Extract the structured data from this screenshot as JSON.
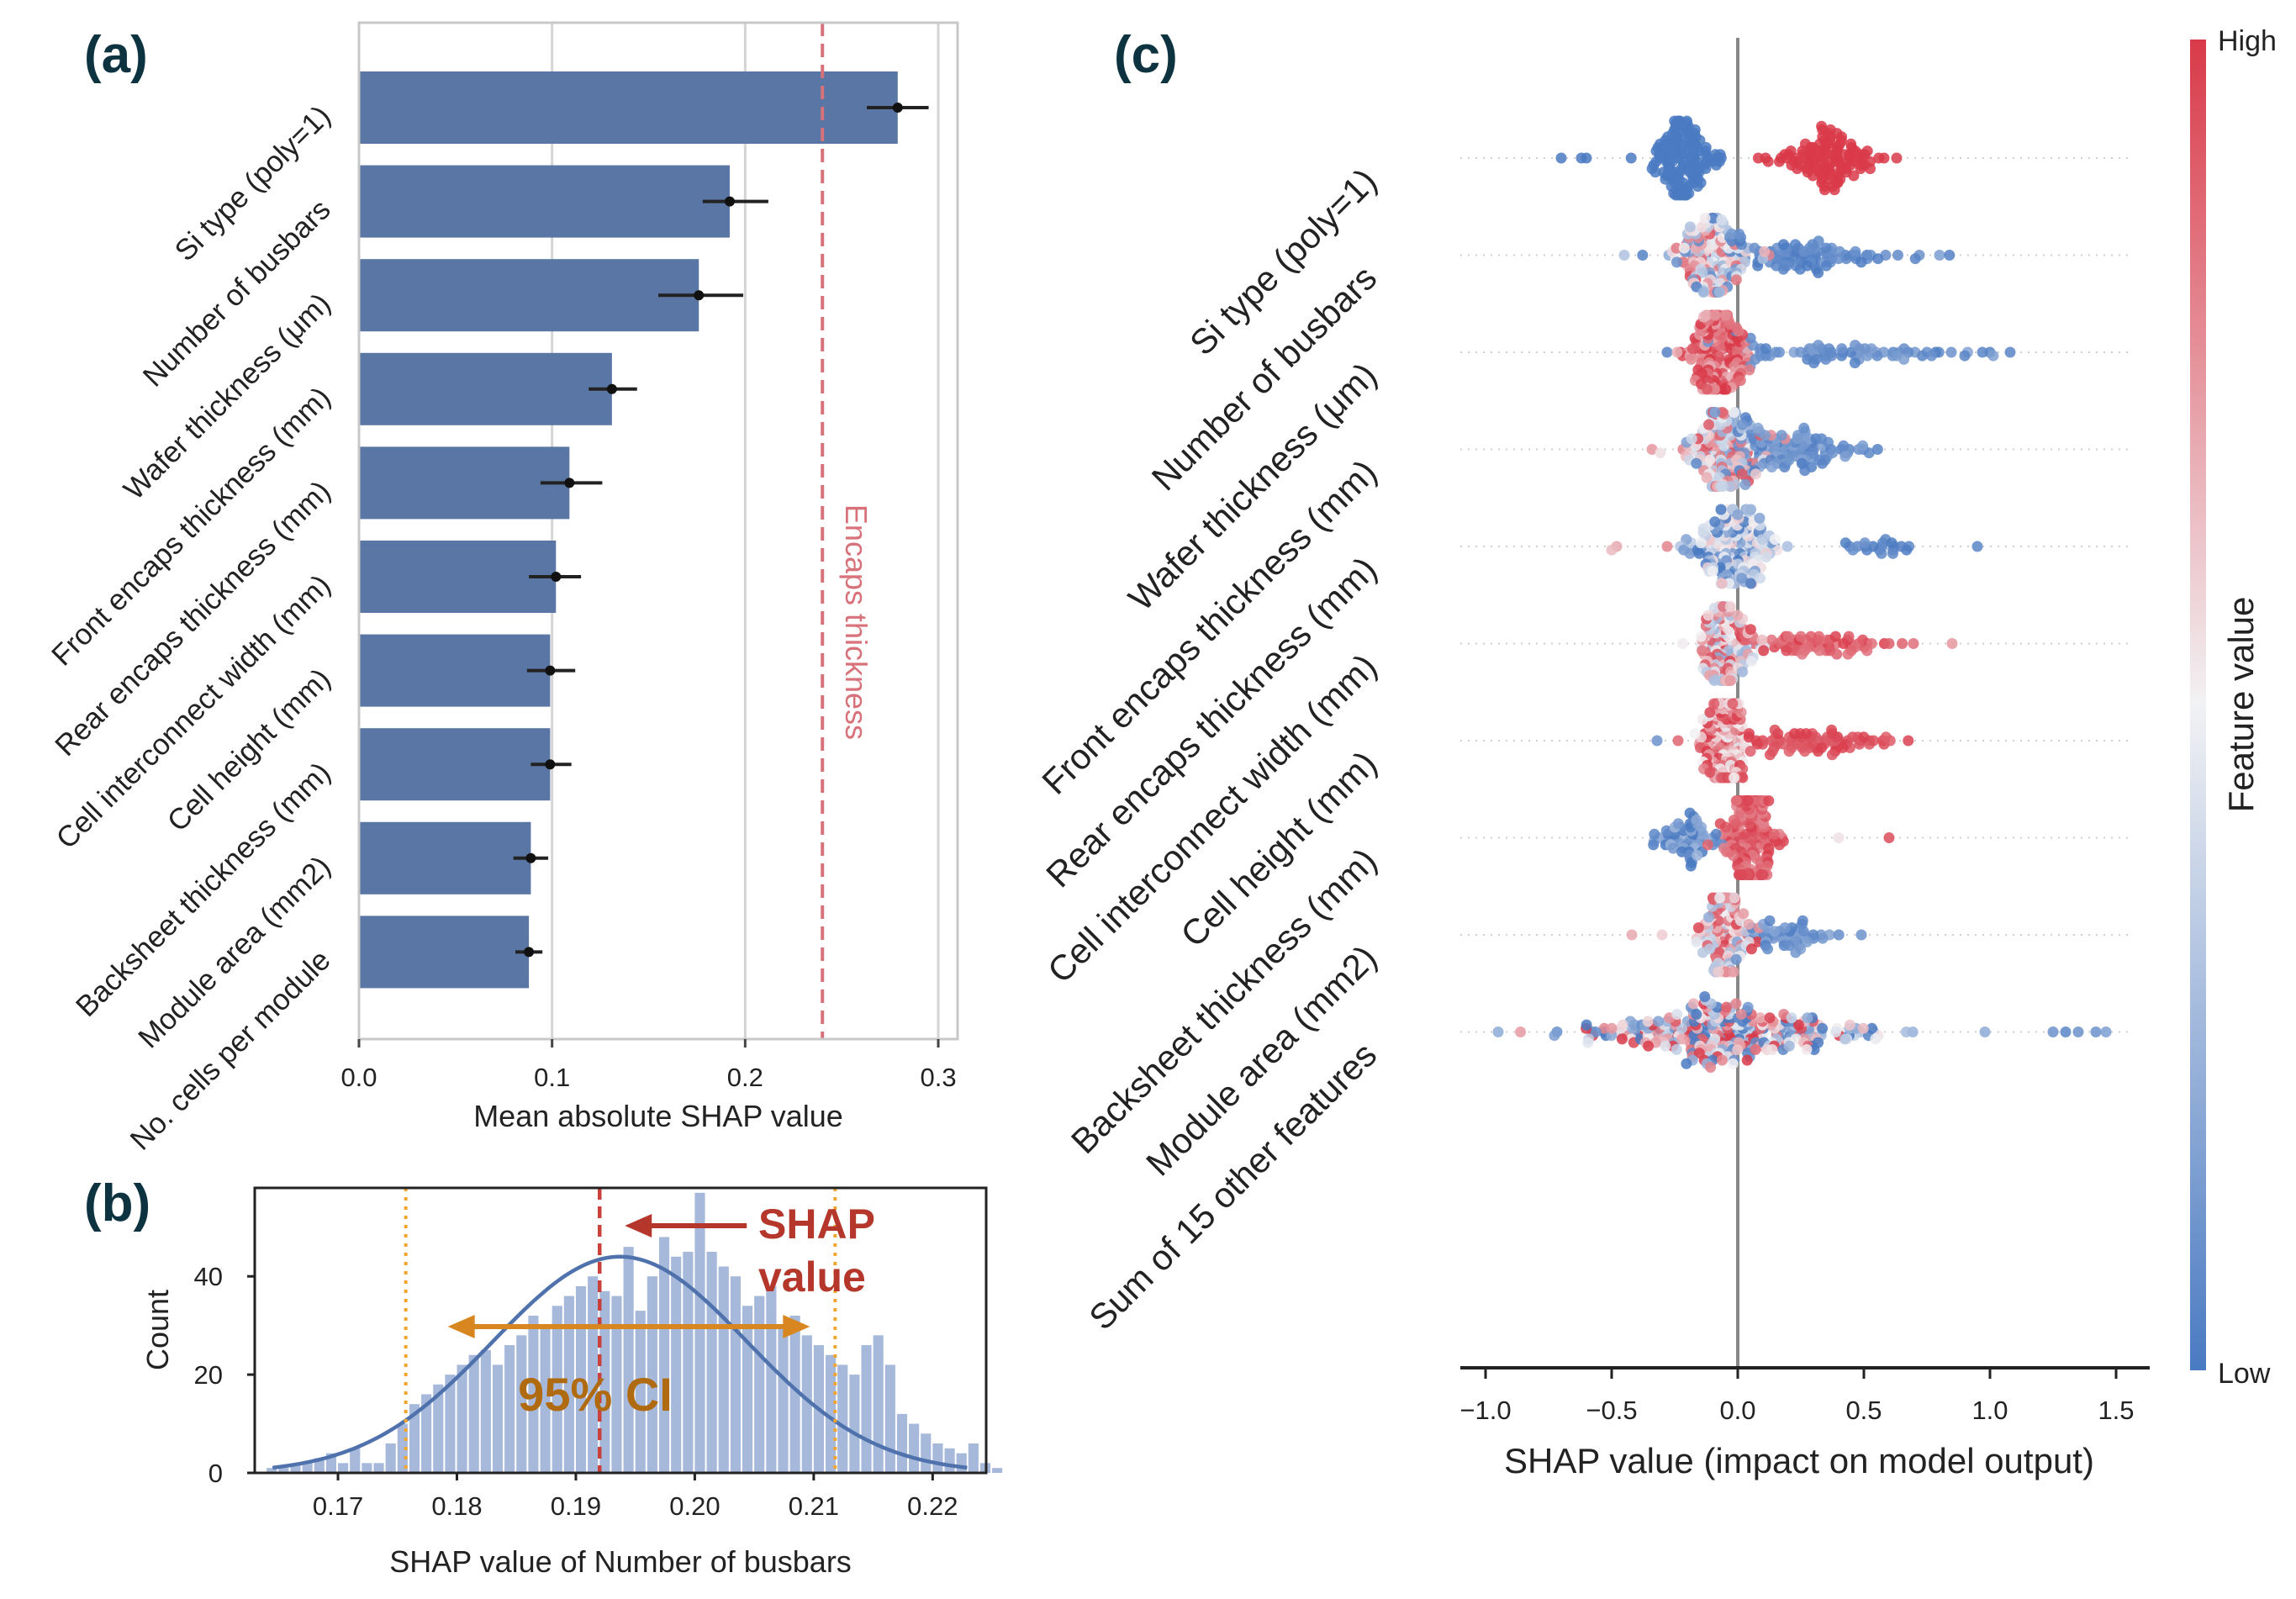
{
  "panels": {
    "a": "(a)",
    "b": "(b)",
    "c": "(c)"
  },
  "colors": {
    "bar": "#5a76a5",
    "reference_line": "#d8727a",
    "kde": "#4f72ad",
    "hist": "#a6b9da",
    "ci_arrow": "#d8861f",
    "ci_text": "#b06a10",
    "shap_text": "#b5372b",
    "ci_line": "#f2a52e",
    "high": "#d93a49",
    "low": "#4a7ac2",
    "mid": "#f2f2f4"
  },
  "chart_data": [
    {
      "type": "bar",
      "orientation": "horizontal",
      "panel": "a",
      "categories": [
        "Si type (poly=1)",
        "Number of busbars",
        "Wafer thickness (μm)",
        "Front encaps thickness (mm)",
        "Rear encaps thickness (mm)",
        "Cell interconnect width (mm)",
        "Cell height (mm)",
        "Backsheet thickness (mm)",
        "Module area (mm2)",
        "No. cells per module"
      ],
      "values": [
        0.279,
        0.192,
        0.176,
        0.131,
        0.109,
        0.102,
        0.099,
        0.099,
        0.089,
        0.088
      ],
      "err_low": [
        0.263,
        0.178,
        0.155,
        0.119,
        0.094,
        0.088,
        0.087,
        0.089,
        0.08,
        0.081
      ],
      "err_high": [
        0.295,
        0.212,
        0.199,
        0.144,
        0.126,
        0.115,
        0.112,
        0.11,
        0.098,
        0.095
      ],
      "xlabel": "Mean absolute SHAP value",
      "xlim": [
        0.0,
        0.31
      ],
      "xticks": [
        0.0,
        0.1,
        0.2,
        0.3
      ],
      "xtick_labels": [
        "0.0",
        "0.1",
        "0.2",
        "0.3"
      ],
      "reference_line": {
        "value": 0.24,
        "label": "Encaps thickness"
      },
      "grid": true
    },
    {
      "type": "histogram",
      "panel": "b",
      "bin_start": 0.164,
      "bin_width": 0.001,
      "counts": [
        1,
        1,
        2,
        2,
        3,
        4,
        2,
        5,
        2,
        2,
        6,
        10,
        14,
        16,
        18,
        20,
        22,
        24,
        25,
        22,
        26,
        28,
        32,
        30,
        34,
        36,
        38,
        40,
        37,
        36,
        46,
        33,
        40,
        48,
        44,
        45,
        57,
        45,
        42,
        40,
        34,
        36,
        38,
        30,
        32,
        28,
        26,
        24,
        22,
        20,
        26,
        28,
        22,
        12,
        10,
        8,
        6,
        5,
        4,
        6,
        2,
        1
      ],
      "kde": {
        "mean": 0.1937,
        "sd": 0.0107,
        "peak_count": 44
      },
      "ci": {
        "low": 0.1757,
        "high": 0.2118,
        "label": "95% CI"
      },
      "shap_value": {
        "value": 0.192,
        "label_line1": "SHAP",
        "label_line2": "value"
      },
      "xlabel": "SHAP value of Number of busbars",
      "ylabel": "Count",
      "xlim": [
        0.163,
        0.2245
      ],
      "ylim": [
        0,
        58
      ],
      "xticks": [
        0.17,
        0.18,
        0.19,
        0.2,
        0.21,
        0.22
      ],
      "xtick_labels": [
        "0.17",
        "0.18",
        "0.19",
        "0.20",
        "0.21",
        "0.22"
      ],
      "yticks": [
        0,
        20,
        40
      ],
      "ytick_labels": [
        "0",
        "20",
        "40"
      ]
    },
    {
      "type": "scatter",
      "subtype": "beeswarm",
      "panel": "c",
      "features": [
        "Si type (poly=1)",
        "Number of busbars",
        "Wafer thickness (μm)",
        "Front encaps thickness (mm)",
        "Rear encaps thickness (mm)",
        "Cell interconnect width (mm)",
        "Cell height (mm)",
        "Backsheet thickness (mm)",
        "Module area (mm2)",
        "Sum of 15 other features"
      ],
      "distributions": [
        {
          "clusters": [
            {
              "center": -0.22,
              "spread": 0.06,
              "n": 130,
              "value": 0.0,
              "jitter": 0.0
            },
            {
              "center": 0.36,
              "spread": 0.09,
              "n": 110,
              "value": 1.0,
              "jitter": 0.0
            }
          ],
          "outliers": [
            {
              "x": -0.7,
              "value": 0.0
            },
            {
              "x": -0.62,
              "value": 0.0
            },
            {
              "x": -0.6,
              "value": 0.0
            },
            {
              "x": 0.58,
              "value": 1.0
            },
            {
              "x": 0.63,
              "value": 1.0
            }
          ]
        },
        {
          "clusters": [
            {
              "center": -0.1,
              "spread": 0.07,
              "n": 150,
              "value": 0.5,
              "jitter": 0.45
            },
            {
              "center": 0.25,
              "spread": 0.2,
              "n": 90,
              "value": 0.05,
              "jitter": 0.05
            }
          ],
          "outliers": [
            {
              "x": 0.72,
              "value": 0.1
            },
            {
              "x": 0.8,
              "value": 0.15
            },
            {
              "x": -0.45,
              "value": 0.3
            }
          ]
        },
        {
          "clusters": [
            {
              "center": -0.08,
              "spread": 0.06,
              "n": 160,
              "value": 0.85,
              "jitter": 0.2
            },
            {
              "center": 0.38,
              "spread": 0.25,
              "n": 70,
              "value": 0.1,
              "jitter": 0.08
            }
          ],
          "outliers": [
            {
              "x": 0.9,
              "value": 0.05
            },
            {
              "x": 0.97,
              "value": 0.05
            },
            {
              "x": 1.08,
              "value": 0.05
            }
          ]
        },
        {
          "clusters": [
            {
              "center": -0.06,
              "spread": 0.07,
              "n": 140,
              "value": 0.55,
              "jitter": 0.4
            },
            {
              "center": 0.2,
              "spread": 0.14,
              "n": 110,
              "value": 0.1,
              "jitter": 0.08
            }
          ],
          "outliers": [
            {
              "x": 0.48,
              "value": 0.1
            },
            {
              "x": -0.34,
              "value": 0.75
            }
          ]
        },
        {
          "clusters": [
            {
              "center": -0.02,
              "spread": 0.09,
              "n": 170,
              "value": 0.3,
              "jitter": 0.35
            },
            {
              "center": 0.55,
              "spread": 0.07,
              "n": 20,
              "value": 0.05,
              "jitter": 0.05
            }
          ],
          "outliers": [
            {
              "x": 0.95,
              "value": 0.05
            },
            {
              "x": -0.5,
              "value": 0.65
            },
            {
              "x": -0.48,
              "value": 0.7
            },
            {
              "x": -0.28,
              "value": 0.8
            }
          ]
        },
        {
          "clusters": [
            {
              "center": -0.05,
              "spread": 0.06,
              "n": 140,
              "value": 0.6,
              "jitter": 0.4
            },
            {
              "center": 0.3,
              "spread": 0.15,
              "n": 60,
              "value": 0.92,
              "jitter": 0.08
            }
          ],
          "outliers": [
            {
              "x": 0.6,
              "value": 0.9
            },
            {
              "x": 0.85,
              "value": 0.75
            }
          ]
        },
        {
          "clusters": [
            {
              "center": -0.05,
              "spread": 0.05,
              "n": 150,
              "value": 0.75,
              "jitter": 0.3
            },
            {
              "center": 0.3,
              "spread": 0.15,
              "n": 70,
              "value": 0.95,
              "jitter": 0.05
            }
          ],
          "outliers": [
            {
              "x": 0.58,
              "value": 0.95
            },
            {
              "x": -0.32,
              "value": 0.1
            }
          ]
        },
        {
          "clusters": [
            {
              "center": -0.2,
              "spread": 0.07,
              "n": 60,
              "value": 0.1,
              "jitter": 0.15
            },
            {
              "center": 0.05,
              "spread": 0.05,
              "n": 180,
              "value": 0.9,
              "jitter": 0.1
            }
          ],
          "outliers": [
            {
              "x": 0.4,
              "value": 0.55
            },
            {
              "x": 0.6,
              "value": 0.95
            }
          ]
        },
        {
          "clusters": [
            {
              "center": -0.05,
              "spread": 0.05,
              "n": 130,
              "value": 0.6,
              "jitter": 0.4
            },
            {
              "center": 0.18,
              "spread": 0.1,
              "n": 50,
              "value": 0.1,
              "jitter": 0.08
            }
          ],
          "outliers": [
            {
              "x": 0.49,
              "value": 0.1
            },
            {
              "x": -0.42,
              "value": 0.7
            },
            {
              "x": -0.3,
              "value": 0.6
            }
          ]
        },
        {
          "clusters": [
            {
              "center": -0.05,
              "spread": 0.28,
              "n": 300,
              "value": 0.5,
              "jitter": 0.6
            }
          ],
          "outliers": [
            {
              "x": 1.25,
              "value": 0.1
            },
            {
              "x": 1.3,
              "value": 0.05
            },
            {
              "x": 1.35,
              "value": 0.1
            },
            {
              "x": 1.42,
              "value": 0.1
            },
            {
              "x": 1.46,
              "value": 0.15
            },
            {
              "x": 0.98,
              "value": 0.2
            },
            {
              "x": -0.95,
              "value": 0.2
            }
          ]
        }
      ],
      "xlabel": "SHAP value (impact on model output)",
      "xlim": [
        -1.07,
        1.6
      ],
      "xticks": [
        -1.0,
        -0.5,
        0.0,
        0.5,
        1.0,
        1.5
      ],
      "xtick_labels": [
        "−1.0",
        "−0.5",
        "0.0",
        "0.5",
        "1.0",
        "1.5"
      ],
      "colorbar": {
        "label": "Feature value",
        "high": "High",
        "low": "Low"
      }
    }
  ]
}
